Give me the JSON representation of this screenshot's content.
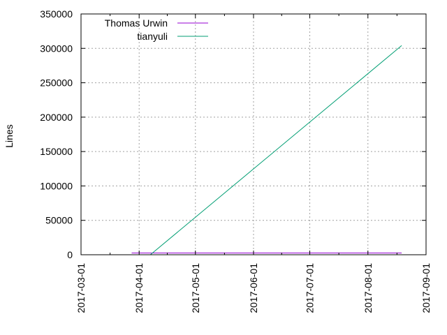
{
  "chart_data": {
    "type": "line",
    "title": "",
    "xlabel": "",
    "ylabel": "Lines",
    "x_type": "date",
    "xlim": [
      "2017-03-01",
      "2017-09-01"
    ],
    "ylim": [
      0,
      350000
    ],
    "xticks": [
      "2017-03-01",
      "2017-04-01",
      "2017-05-01",
      "2017-06-01",
      "2017-07-01",
      "2017-08-01",
      "2017-09-01"
    ],
    "yticks": [
      0,
      50000,
      100000,
      150000,
      200000,
      250000,
      300000,
      350000
    ],
    "grid": true,
    "legend_position": "top-left",
    "series": [
      {
        "name": "Thomas Urwin",
        "color": "#9400d3",
        "points": [
          {
            "x": "2017-03-28",
            "y": 2500
          },
          {
            "x": "2017-08-19",
            "y": 2500
          }
        ]
      },
      {
        "name": "tianyuli",
        "color": "#009e73",
        "points": [
          {
            "x": "2017-04-07",
            "y": 0
          },
          {
            "x": "2017-08-19",
            "y": 304000
          }
        ]
      }
    ]
  }
}
